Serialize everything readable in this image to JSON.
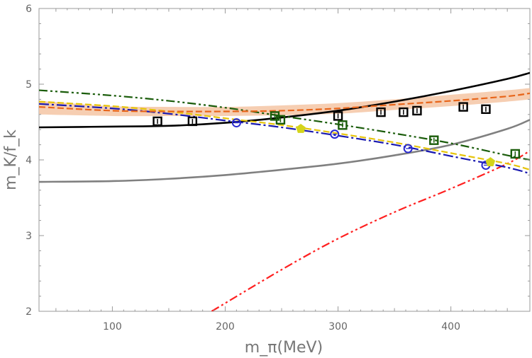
{
  "chart_data": {
    "type": "scatter",
    "title": "",
    "xlabel": "m_π(MeV)",
    "ylabel": "m_K/f_k",
    "xlim": [
      35,
      470
    ],
    "ylim": [
      2,
      6
    ],
    "x_ticks": [
      100,
      200,
      300,
      400
    ],
    "y_ticks": [
      2,
      3,
      4,
      5,
      6
    ],
    "grid": false,
    "colors": {
      "black": "#000000",
      "gray": "#808080",
      "red": "#ff2020",
      "orange": "#e8651a",
      "band": "#f5c6a5",
      "green": "#1a5c0a",
      "blue": "#1a1ab0",
      "yellow": "#e6c40a",
      "circle": "#2a2ad0",
      "pentagon": "#d4d41a"
    },
    "curves": [
      {
        "name": "black-solid",
        "style": "solid",
        "color": "black",
        "x": [
          35,
          100,
          150,
          200,
          250,
          300,
          350,
          400,
          450,
          470
        ],
        "y": [
          4.43,
          4.44,
          4.45,
          4.49,
          4.56,
          4.65,
          4.77,
          4.91,
          5.07,
          5.15
        ]
      },
      {
        "name": "gray-solid",
        "style": "solid",
        "color": "gray",
        "x": [
          35,
          100,
          150,
          200,
          250,
          300,
          350,
          400,
          450,
          470
        ],
        "y": [
          3.71,
          3.72,
          3.75,
          3.8,
          3.87,
          3.95,
          4.06,
          4.2,
          4.41,
          4.53
        ]
      },
      {
        "name": "red-dashdot",
        "style": "dashdotdot",
        "color": "red",
        "x": [
          188,
          250,
          300,
          350,
          400,
          450,
          470
        ],
        "y": [
          2.0,
          2.55,
          2.96,
          3.31,
          3.62,
          3.95,
          4.12
        ]
      },
      {
        "name": "green-dashdot",
        "style": "dashdotdot",
        "color": "green",
        "x": [
          35,
          100,
          150,
          200,
          250,
          300,
          350,
          400,
          450,
          470
        ],
        "y": [
          4.92,
          4.85,
          4.78,
          4.69,
          4.58,
          4.47,
          4.35,
          4.22,
          4.06,
          4.0
        ]
      },
      {
        "name": "blue-dashdot",
        "style": "dashdot",
        "color": "blue",
        "x": [
          35,
          100,
          150,
          200,
          250,
          300,
          350,
          400,
          450,
          470
        ],
        "y": [
          4.74,
          4.68,
          4.61,
          4.52,
          4.43,
          4.32,
          4.2,
          4.05,
          3.9,
          3.82
        ]
      },
      {
        "name": "yellow-dashed",
        "style": "dashed",
        "color": "yellow",
        "x": [
          35,
          100,
          150,
          200,
          250,
          300,
          350,
          400,
          450,
          470
        ],
        "y": [
          4.77,
          4.71,
          4.64,
          4.55,
          4.46,
          4.35,
          4.23,
          4.09,
          3.95,
          3.87
        ]
      },
      {
        "name": "orange-dashed",
        "style": "dashed",
        "color": "orange",
        "x": [
          35,
          100,
          150,
          200,
          250,
          300,
          350,
          400,
          450,
          470
        ],
        "y": [
          4.7,
          4.65,
          4.64,
          4.64,
          4.65,
          4.68,
          4.73,
          4.78,
          4.84,
          4.88
        ]
      }
    ],
    "band": {
      "name": "orange-band",
      "x": [
        35,
        100,
        150,
        200,
        250,
        300,
        350,
        400,
        450,
        470
      ],
      "upper": [
        4.78,
        4.71,
        4.7,
        4.7,
        4.72,
        4.75,
        4.8,
        4.86,
        4.92,
        4.95
      ],
      "lower": [
        4.6,
        4.58,
        4.58,
        4.58,
        4.59,
        4.61,
        4.66,
        4.71,
        4.77,
        4.8
      ]
    },
    "series": [
      {
        "name": "black-squares",
        "marker": "square",
        "color": "black",
        "x": [
          140,
          171,
          300,
          338,
          358,
          370,
          411,
          431
        ],
        "y": [
          4.51,
          4.51,
          4.58,
          4.63,
          4.63,
          4.65,
          4.7,
          4.67
        ]
      },
      {
        "name": "green-squares",
        "marker": "square",
        "color": "green",
        "x": [
          244,
          249,
          304,
          385,
          457
        ],
        "y": [
          4.58,
          4.53,
          4.46,
          4.26,
          4.08
        ]
      },
      {
        "name": "blue-circles",
        "marker": "circle",
        "color": "circle",
        "x": [
          210,
          297,
          362,
          431
        ],
        "y": [
          4.49,
          4.34,
          4.15,
          3.93
        ]
      },
      {
        "name": "yellow-pentagons",
        "marker": "pentagon",
        "color": "pentagon",
        "x": [
          267,
          435
        ],
        "y": [
          4.41,
          3.97
        ]
      }
    ]
  }
}
